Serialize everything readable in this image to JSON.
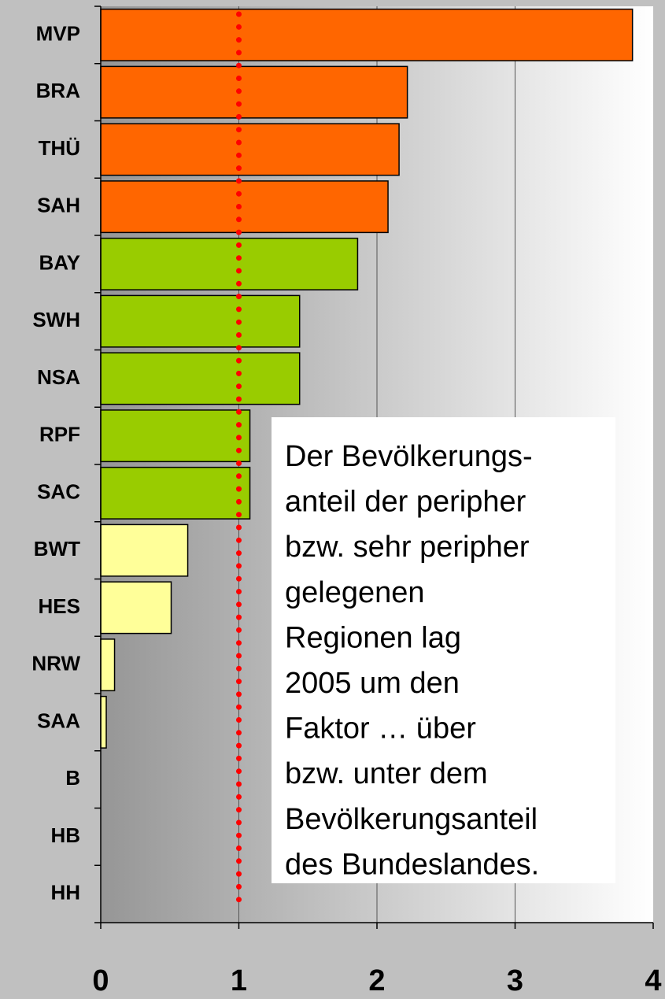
{
  "chart_data": {
    "type": "barh",
    "categories": [
      "MVP",
      "BRA",
      "THÜ",
      "SAH",
      "BAY",
      "SWH",
      "NSA",
      "RPF",
      "SAC",
      "BWT",
      "HES",
      "NRW",
      "SAA",
      "B",
      "HB",
      "HH"
    ],
    "values": [
      3.85,
      2.22,
      2.16,
      2.08,
      1.86,
      1.44,
      1.44,
      1.08,
      1.08,
      0.63,
      0.51,
      0.1,
      0.04,
      0,
      0,
      0
    ],
    "colors": [
      "#ff6600",
      "#ff6600",
      "#ff6600",
      "#ff6600",
      "#99cc00",
      "#99cc00",
      "#99cc00",
      "#99cc00",
      "#99cc00",
      "#ffff99",
      "#ffff99",
      "#ffff99",
      "#ffff99",
      "#ffff99",
      "#ffff99",
      "#ffff99"
    ],
    "xlim": [
      0,
      4
    ],
    "xticks": [
      0,
      1,
      2,
      3,
      4
    ],
    "grid": true,
    "reference_line": {
      "value": 1,
      "color": "#ff0000"
    },
    "annotation": [
      "Der Bevölkerungs-",
      "anteil der peripher",
      "bzw. sehr peripher",
      "gelegenen",
      "Regionen lag",
      "2005 um den",
      "Faktor … über",
      "bzw. unter dem",
      "Bevölkerungsanteil",
      "des Bundeslandes."
    ]
  }
}
